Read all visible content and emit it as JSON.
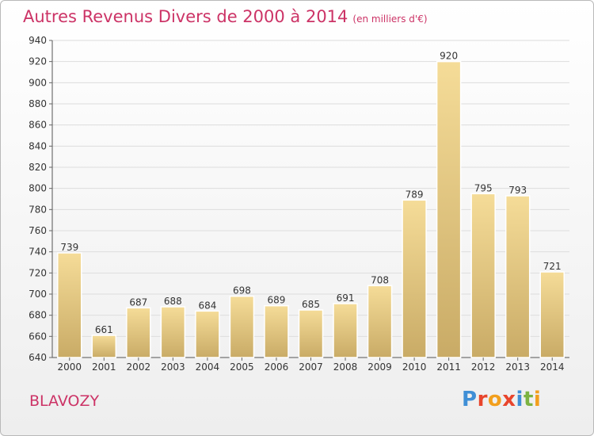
{
  "header": {
    "title": "Autres Revenus Divers de 2000 à 2014",
    "subtitle": "(en milliers d'€)"
  },
  "footer": {
    "commune": "BLAVOZY",
    "brand": "Proxiti"
  },
  "colors": {
    "title": "#cc3366",
    "bar_light": "#f5dc98",
    "bar_dark": "#c9ab66",
    "gridline": "#dddddd",
    "brand_letters": [
      "#3f8fd6",
      "#e8452c",
      "#f29f1d",
      "#e8452c",
      "#3f8fd6",
      "#7cb342",
      "#f29f1d"
    ]
  },
  "chart_data": {
    "type": "bar",
    "title": "Autres Revenus Divers de 2000 à 2014",
    "subtitle": "(en milliers d'€)",
    "xlabel": "",
    "ylabel": "",
    "categories": [
      "2000",
      "2001",
      "2002",
      "2003",
      "2004",
      "2005",
      "2006",
      "2007",
      "2008",
      "2009",
      "2010",
      "2011",
      "2012",
      "2013",
      "2014"
    ],
    "values": [
      739,
      661,
      687,
      688,
      684,
      698,
      689,
      685,
      691,
      708,
      789,
      920,
      795,
      793,
      721
    ],
    "data_labels": [
      "739",
      "661",
      "687",
      "688",
      "684",
      "698",
      "689",
      "685",
      "691",
      "708",
      "789",
      "920",
      "795",
      "793",
      "721"
    ],
    "ylim": [
      640,
      940
    ],
    "yticks": [
      640,
      660,
      680,
      700,
      720,
      740,
      760,
      780,
      800,
      820,
      840,
      860,
      880,
      900,
      920,
      940
    ],
    "grid": true
  }
}
